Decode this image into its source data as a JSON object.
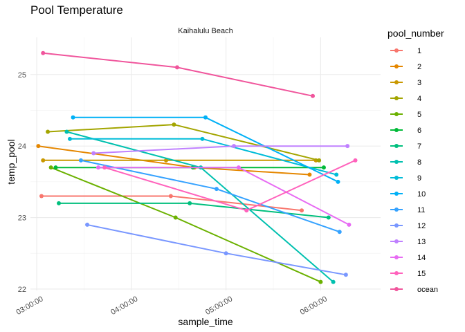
{
  "chart_data": {
    "type": "line",
    "title": "Pool Temperature",
    "facet": "Kaihalulu Beach",
    "xlabel": "sample_time",
    "ylabel": "temp_pool",
    "legend_title": "pool_number",
    "legend_position": "right",
    "grid": true,
    "xlim": [
      "02:56:00",
      "06:38:00"
    ],
    "ylim": [
      21.98,
      25.52
    ],
    "x_ticks": [
      "03:00:00",
      "04:00:00",
      "05:00:00",
      "06:00:00"
    ],
    "y_ticks": [
      22,
      23,
      24,
      25
    ],
    "series": [
      {
        "name": "1",
        "color": "#F8766D",
        "points": [
          {
            "x": "03:03:00",
            "y": 23.3
          },
          {
            "x": "04:25:00",
            "y": 23.3
          },
          {
            "x": "05:48:00",
            "y": 23.1
          }
        ]
      },
      {
        "name": "2",
        "color": "#E58700",
        "points": [
          {
            "x": "03:01:00",
            "y": 24.0
          },
          {
            "x": "04:40:00",
            "y": 23.7
          },
          {
            "x": "05:53:00",
            "y": 23.6
          }
        ]
      },
      {
        "name": "3",
        "color": "#C99800",
        "points": [
          {
            "x": "03:04:00",
            "y": 23.8
          },
          {
            "x": "04:22:00",
            "y": 23.8
          },
          {
            "x": "05:57:00",
            "y": 23.8
          }
        ]
      },
      {
        "name": "4",
        "color": "#A3A500",
        "points": [
          {
            "x": "03:07:00",
            "y": 24.2
          },
          {
            "x": "04:27:00",
            "y": 24.3
          },
          {
            "x": "05:59:00",
            "y": 23.8
          }
        ]
      },
      {
        "name": "5",
        "color": "#6BB100",
        "points": [
          {
            "x": "03:09:00",
            "y": 23.7
          },
          {
            "x": "04:28:00",
            "y": 23.0
          },
          {
            "x": "06:00:00",
            "y": 22.1
          }
        ]
      },
      {
        "name": "6",
        "color": "#00BA38",
        "points": [
          {
            "x": "03:12:00",
            "y": 23.7
          },
          {
            "x": "04:39:00",
            "y": 23.7
          },
          {
            "x": "06:02:00",
            "y": 23.7
          }
        ]
      },
      {
        "name": "7",
        "color": "#00BF7D",
        "points": [
          {
            "x": "03:14:00",
            "y": 23.2
          },
          {
            "x": "04:37:00",
            "y": 23.2
          },
          {
            "x": "06:05:00",
            "y": 23.0
          }
        ]
      },
      {
        "name": "8",
        "color": "#00C0AF",
        "points": [
          {
            "x": "03:19:00",
            "y": 24.2
          },
          {
            "x": "04:44:00",
            "y": 23.7
          },
          {
            "x": "06:08:00",
            "y": 22.1
          }
        ]
      },
      {
        "name": "9",
        "color": "#00BCD8",
        "points": [
          {
            "x": "03:21:00",
            "y": 24.1
          },
          {
            "x": "04:45:00",
            "y": 24.1
          },
          {
            "x": "06:10:00",
            "y": 23.6
          }
        ]
      },
      {
        "name": "10",
        "color": "#00B0F6",
        "points": [
          {
            "x": "03:23:00",
            "y": 24.4
          },
          {
            "x": "04:47:00",
            "y": 24.4
          },
          {
            "x": "06:11:00",
            "y": 23.5
          }
        ]
      },
      {
        "name": "11",
        "color": "#35A2FF",
        "points": [
          {
            "x": "03:28:00",
            "y": 23.8
          },
          {
            "x": "04:54:00",
            "y": 23.4
          },
          {
            "x": "06:12:00",
            "y": 22.8
          }
        ]
      },
      {
        "name": "12",
        "color": "#7997FF",
        "points": [
          {
            "x": "03:32:00",
            "y": 22.9
          },
          {
            "x": "05:00:00",
            "y": 22.5
          },
          {
            "x": "06:16:00",
            "y": 22.2
          }
        ]
      },
      {
        "name": "13",
        "color": "#BF80FF",
        "points": [
          {
            "x": "03:36:00",
            "y": 23.9
          },
          {
            "x": "05:05:00",
            "y": 24.0
          },
          {
            "x": "06:17:00",
            "y": 24.0
          }
        ]
      },
      {
        "name": "14",
        "color": "#E76BF3",
        "points": [
          {
            "x": "03:39:00",
            "y": 23.7
          },
          {
            "x": "05:08:00",
            "y": 23.7
          },
          {
            "x": "06:18:00",
            "y": 22.9
          }
        ]
      },
      {
        "name": "15",
        "color": "#FF62BC",
        "points": [
          {
            "x": "03:43:00",
            "y": 23.7
          },
          {
            "x": "05:13:00",
            "y": 23.1
          },
          {
            "x": "06:22:00",
            "y": 23.8
          }
        ]
      },
      {
        "name": "ocean",
        "color": "#F0559C",
        "points": [
          {
            "x": "03:04:00",
            "y": 25.3
          },
          {
            "x": "04:29:00",
            "y": 25.1
          },
          {
            "x": "05:55:00",
            "y": 24.7
          }
        ]
      }
    ]
  }
}
